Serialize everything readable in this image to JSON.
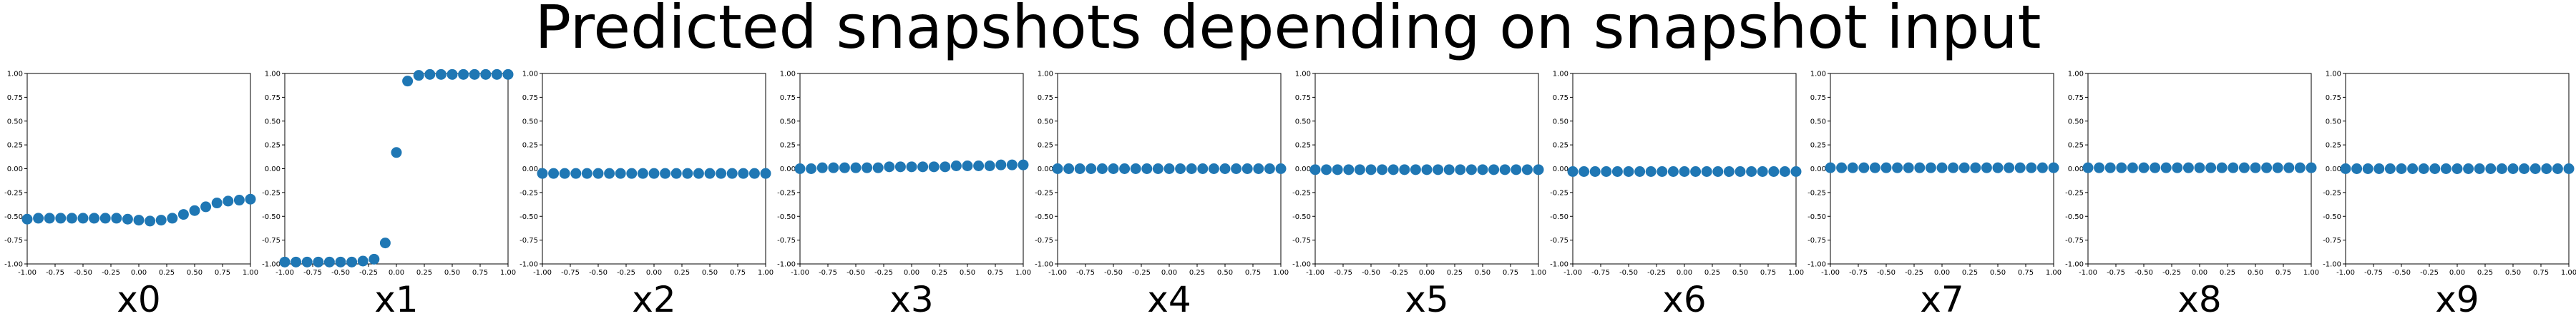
{
  "suptitle": "Predicted snapshots depending on snapshot input",
  "chart_data": {
    "type": "scatter",
    "title": "Predicted snapshots depending on snapshot input",
    "marker_color": "#1f77b4",
    "xlim": [
      -1.0,
      1.0
    ],
    "ylim": [
      -1.0,
      1.0
    ],
    "grid": false,
    "x": [
      -1.0,
      -0.9,
      -0.8,
      -0.7,
      -0.6,
      -0.5,
      -0.4,
      -0.3,
      -0.2,
      -0.1,
      0.0,
      0.1,
      0.2,
      0.3,
      0.4,
      0.5,
      0.6,
      0.7,
      0.8,
      0.9,
      1.0
    ],
    "x_ticks": [
      "-1.00",
      "-0.75",
      "-0.50",
      "-0.25",
      "0.00",
      "0.25",
      "0.50",
      "0.75",
      "1.00"
    ],
    "y_ticks": [
      "-1.00",
      "-0.75",
      "-0.50",
      "-0.25",
      "0.00",
      "0.25",
      "0.50",
      "0.75",
      "1.00"
    ],
    "panels": [
      {
        "xlabel": "x0",
        "values": [
          -0.53,
          -0.52,
          -0.52,
          -0.52,
          -0.52,
          -0.52,
          -0.52,
          -0.52,
          -0.52,
          -0.53,
          -0.54,
          -0.55,
          -0.54,
          -0.52,
          -0.48,
          -0.44,
          -0.4,
          -0.36,
          -0.34,
          -0.33,
          -0.32
        ]
      },
      {
        "xlabel": "x1",
        "values": [
          -0.98,
          -0.98,
          -0.98,
          -0.98,
          -0.98,
          -0.98,
          -0.98,
          -0.97,
          -0.95,
          -0.78,
          0.17,
          0.92,
          0.98,
          0.99,
          0.99,
          0.99,
          0.99,
          0.99,
          0.99,
          0.99,
          0.99
        ]
      },
      {
        "xlabel": "x2",
        "values": [
          -0.05,
          -0.05,
          -0.05,
          -0.05,
          -0.05,
          -0.05,
          -0.05,
          -0.05,
          -0.05,
          -0.05,
          -0.05,
          -0.05,
          -0.05,
          -0.05,
          -0.05,
          -0.05,
          -0.05,
          -0.05,
          -0.05,
          -0.05,
          -0.05
        ]
      },
      {
        "xlabel": "x3",
        "values": [
          0.0,
          0.0,
          0.01,
          0.01,
          0.01,
          0.01,
          0.01,
          0.01,
          0.02,
          0.02,
          0.02,
          0.02,
          0.02,
          0.02,
          0.03,
          0.03,
          0.03,
          0.03,
          0.04,
          0.04,
          0.04
        ]
      },
      {
        "xlabel": "x4",
        "values": [
          0.0,
          0.0,
          0.0,
          0.0,
          0.0,
          0.0,
          0.0,
          0.0,
          0.0,
          0.0,
          0.0,
          0.0,
          0.0,
          0.0,
          0.0,
          0.0,
          0.0,
          0.0,
          0.0,
          0.0,
          0.0
        ]
      },
      {
        "xlabel": "x5",
        "values": [
          -0.01,
          -0.01,
          -0.01,
          -0.01,
          -0.01,
          -0.01,
          -0.01,
          -0.01,
          -0.01,
          -0.01,
          -0.01,
          -0.01,
          -0.01,
          -0.01,
          -0.01,
          -0.01,
          -0.01,
          -0.01,
          -0.01,
          -0.01,
          -0.01
        ]
      },
      {
        "xlabel": "x6",
        "values": [
          -0.03,
          -0.03,
          -0.03,
          -0.03,
          -0.03,
          -0.03,
          -0.03,
          -0.03,
          -0.03,
          -0.03,
          -0.03,
          -0.03,
          -0.03,
          -0.03,
          -0.03,
          -0.03,
          -0.03,
          -0.03,
          -0.03,
          -0.03,
          -0.03
        ]
      },
      {
        "xlabel": "x7",
        "values": [
          0.01,
          0.01,
          0.01,
          0.01,
          0.01,
          0.01,
          0.01,
          0.01,
          0.01,
          0.01,
          0.01,
          0.01,
          0.01,
          0.01,
          0.01,
          0.01,
          0.01,
          0.01,
          0.01,
          0.01,
          0.01
        ]
      },
      {
        "xlabel": "x8",
        "values": [
          0.01,
          0.01,
          0.01,
          0.01,
          0.01,
          0.01,
          0.01,
          0.01,
          0.01,
          0.01,
          0.01,
          0.01,
          0.01,
          0.01,
          0.01,
          0.01,
          0.01,
          0.01,
          0.01,
          0.01,
          0.01
        ]
      },
      {
        "xlabel": "x9",
        "values": [
          0.0,
          0.0,
          0.0,
          0.0,
          0.0,
          0.0,
          0.0,
          0.0,
          0.0,
          0.0,
          0.0,
          0.0,
          0.0,
          0.0,
          0.0,
          0.0,
          0.0,
          0.0,
          0.0,
          0.0,
          0.0
        ]
      }
    ]
  }
}
